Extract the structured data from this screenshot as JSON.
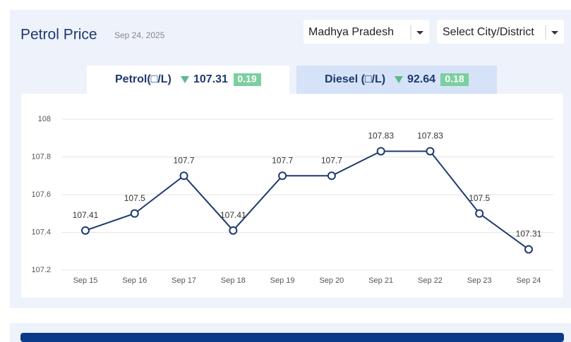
{
  "header": {
    "title": "Petrol Price",
    "date": "Sep 24, 2025"
  },
  "selects": [
    "Madhya Pradesh",
    "Select City/District"
  ],
  "tabs": [
    {
      "label": "Petrol(□/L)",
      "price": 107.31,
      "change": 0.19
    },
    {
      "label": "Diesel (□/L)",
      "price": 92.64,
      "change": 0.18
    }
  ],
  "chart_data": {
    "type": "line",
    "categories": [
      "Sep 15",
      "Sep 16",
      "Sep 17",
      "Sep 18",
      "Sep 19",
      "Sep 20",
      "Sep 21",
      "Sep 22",
      "Sep 23",
      "Sep 24"
    ],
    "values": [
      107.41,
      107.5,
      107.7,
      107.41,
      107.7,
      107.7,
      107.83,
      107.83,
      107.5,
      107.31
    ],
    "color": "#1f3a6e",
    "ylim": [
      107.2,
      108
    ],
    "yticks": [
      107.2,
      107.4,
      107.6,
      107.8,
      108
    ],
    "grid": true
  }
}
